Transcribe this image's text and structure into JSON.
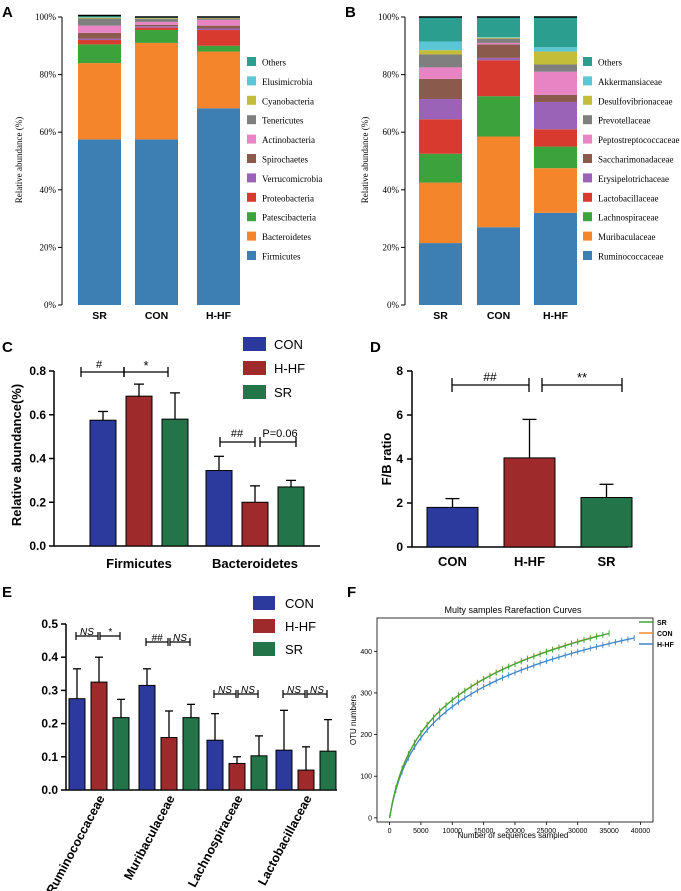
{
  "colors": {
    "CON": "#2b3a9c",
    "H-HF": "#9e2a2b",
    "SR": "#237448",
    "rare": "#3a8a44"
  },
  "chart_data": [
    {
      "id": "A",
      "panel_label": "A",
      "type": "stacked_bar",
      "ylabel": "Relative abundance (%)",
      "yticks": [
        "0%",
        "20%",
        "40%",
        "60%",
        "80%",
        "100%"
      ],
      "ylim": [
        0,
        100
      ],
      "categories": [
        "SR",
        "CON",
        "H-HF"
      ],
      "series": [
        {
          "name": "Firmicutes",
          "color": "#3d7fb3",
          "values": [
            57.5,
            57.5,
            68.3
          ]
        },
        {
          "name": "Bacteroidetes",
          "color": "#f5852a",
          "values": [
            26.5,
            33.5,
            19.7
          ]
        },
        {
          "name": "Patescibacteria",
          "color": "#3ca33c",
          "values": [
            6.5,
            4.5,
            2.0
          ]
        },
        {
          "name": "Proteobacteria",
          "color": "#d93a2f",
          "values": [
            1.5,
            0.8,
            5.5
          ]
        },
        {
          "name": "Verrucomicrobia",
          "color": "#9a63b8",
          "values": [
            0.5,
            0.5,
            0.5
          ]
        },
        {
          "name": "Spirochaetes",
          "color": "#8a5a4c",
          "values": [
            2.0,
            0.5,
            1.0
          ]
        },
        {
          "name": "Actinobacteria",
          "color": "#e884c4",
          "values": [
            2.5,
            1.0,
            2.0
          ]
        },
        {
          "name": "Tenericutes",
          "color": "#7f7f7f",
          "values": [
            2.5,
            1.0,
            0.5
          ]
        },
        {
          "name": "Cyanobacteria",
          "color": "#c3bd3a",
          "values": [
            0.3,
            0.3,
            0.2
          ]
        },
        {
          "name": "Elusimicrobia",
          "color": "#5cc7d4",
          "values": [
            0.2,
            0.2,
            0.2
          ]
        },
        {
          "name": "Others",
          "color": "#2c9e8f",
          "values": [
            0.5,
            0.2,
            0.1
          ]
        }
      ]
    },
    {
      "id": "B",
      "panel_label": "B",
      "type": "stacked_bar",
      "ylabel": "Relative abundance (%)",
      "yticks": [
        "0%",
        "20%",
        "40%",
        "60%",
        "80%",
        "100%"
      ],
      "ylim": [
        0,
        100
      ],
      "categories": [
        "SR",
        "CON",
        "H-HF"
      ],
      "series": [
        {
          "name": "Ruminococcaceae",
          "color": "#3d7fb3",
          "values": [
            21.5,
            27.0,
            32.0
          ]
        },
        {
          "name": "Muribaculaceae",
          "color": "#f5852a",
          "values": [
            21.0,
            31.5,
            15.5
          ]
        },
        {
          "name": "Lachnospiraceae",
          "color": "#3ca33c",
          "values": [
            10.0,
            14.0,
            7.5
          ]
        },
        {
          "name": "Lactobacillaceae",
          "color": "#d93a2f",
          "values": [
            12.0,
            12.5,
            6.0
          ]
        },
        {
          "name": "Erysipelotrichaceae",
          "color": "#9a63b8",
          "values": [
            7.0,
            0.8,
            9.5
          ]
        },
        {
          "name": "Saccharimonadaceae",
          "color": "#8a5a4c",
          "values": [
            7.0,
            4.7,
            2.5
          ]
        },
        {
          "name": "Peptostreptococcaceae",
          "color": "#e884c4",
          "values": [
            4.0,
            0.5,
            8.0
          ]
        },
        {
          "name": "Prevotellaceae",
          "color": "#7f7f7f",
          "values": [
            4.5,
            1.5,
            2.5
          ]
        },
        {
          "name": "Desulfovibrionaceae",
          "color": "#c3bd3a",
          "values": [
            1.5,
            0.3,
            4.5
          ]
        },
        {
          "name": "Akkermansiaceae",
          "color": "#5cc7d4",
          "values": [
            3.0,
            0.2,
            1.5
          ]
        },
        {
          "name": "Others",
          "color": "#2c9e8f",
          "values": [
            8.5,
            7.0,
            10.5
          ]
        }
      ]
    },
    {
      "id": "C",
      "panel_label": "C",
      "type": "bar",
      "ylabel": "Relative abundance(%)",
      "ylim": [
        0,
        0.8
      ],
      "yticks": [
        "0.0",
        "0.2",
        "0.4",
        "0.6",
        "0.8"
      ],
      "categories": [
        "Firmicutes",
        "Bacteroidetes"
      ],
      "legend": [
        "CON",
        "H-HF",
        "SR"
      ],
      "series": [
        {
          "name": "CON",
          "values": [
            0.575,
            0.345
          ],
          "errors": [
            0.04,
            0.065
          ]
        },
        {
          "name": "H-HF",
          "values": [
            0.685,
            0.2
          ],
          "errors": [
            0.055,
            0.075
          ]
        },
        {
          "name": "SR",
          "values": [
            0.58,
            0.27
          ],
          "errors": [
            0.12,
            0.03
          ]
        }
      ],
      "annotations": [
        "#",
        "*",
        "##",
        "P=0.06"
      ]
    },
    {
      "id": "D",
      "panel_label": "D",
      "type": "bar",
      "ylabel": "F/B ratio",
      "ylim": [
        0,
        8
      ],
      "yticks": [
        "0",
        "2",
        "4",
        "6",
        "8"
      ],
      "categories": [
        "CON",
        "H-HF",
        "SR"
      ],
      "values": [
        1.8,
        4.05,
        2.25
      ],
      "errors": [
        0.4,
        1.75,
        0.6
      ],
      "annotations": [
        "##",
        "**"
      ]
    },
    {
      "id": "E",
      "panel_label": "E",
      "type": "bar",
      "ylim": [
        0,
        0.5
      ],
      "yticks": [
        "0.0",
        "0.1",
        "0.2",
        "0.3",
        "0.4",
        "0.5"
      ],
      "categories": [
        "Ruminococcaceae",
        "Muribaculaceae",
        "Lachnospiraceae",
        "Lactobacillaceae"
      ],
      "legend": [
        "CON",
        "H-HF",
        "SR"
      ],
      "series": [
        {
          "name": "CON",
          "values": [
            0.275,
            0.315,
            0.15,
            0.12
          ],
          "errors": [
            0.09,
            0.05,
            0.08,
            0.12
          ]
        },
        {
          "name": "H-HF",
          "values": [
            0.325,
            0.158,
            0.08,
            0.06
          ],
          "errors": [
            0.075,
            0.08,
            0.02,
            0.07
          ]
        },
        {
          "name": "SR",
          "values": [
            0.218,
            0.218,
            0.103,
            0.117
          ],
          "errors": [
            0.055,
            0.04,
            0.06,
            0.095
          ]
        }
      ],
      "annotations": [
        [
          "NS",
          "*"
        ],
        [
          "##",
          "NS"
        ],
        [
          "NS",
          "NS"
        ],
        [
          "NS",
          "NS"
        ]
      ]
    },
    {
      "id": "F",
      "panel_label": "F",
      "type": "line",
      "title": "Multy samples Rarefaction Curves",
      "xlabel": "Number of sequences sampled",
      "ylabel": "OTU numbers",
      "xlim": [
        -2000,
        42000
      ],
      "ylim": [
        -10,
        480
      ],
      "xticks": [
        "0",
        "5000",
        "10000",
        "15000",
        "20000",
        "25000",
        "30000",
        "35000",
        "40000"
      ],
      "yticks": [
        "0",
        "100",
        "200",
        "300",
        "400"
      ],
      "series": [
        {
          "name": "SR",
          "color": "#3ea63a",
          "xmax": 35000,
          "ymax": 443
        },
        {
          "name": "CON",
          "color": "#f08a2a",
          "xmax": 33500,
          "ymax": 438
        },
        {
          "name": "H-HF",
          "color": "#3c85c6",
          "xmax": 39000,
          "ymax": 432
        }
      ]
    }
  ]
}
